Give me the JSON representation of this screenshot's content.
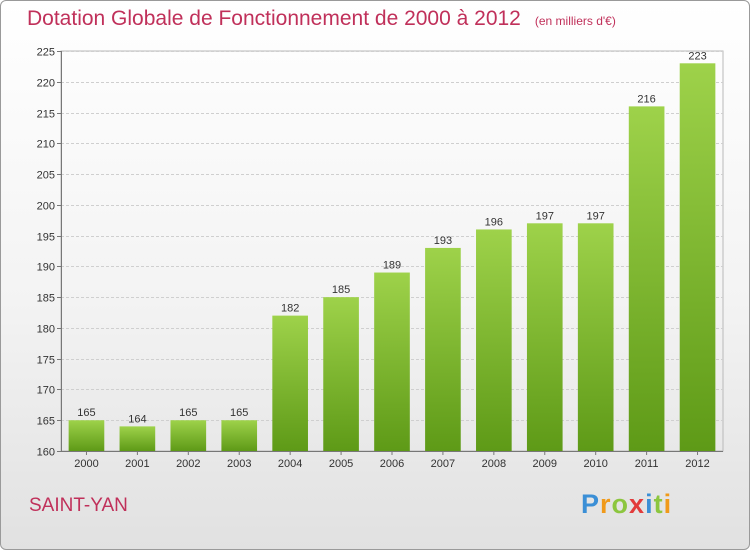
{
  "header": {
    "title": "Dotation Globale de Fonctionnement de 2000 à 2012",
    "subtitle": "(en milliers d'€)"
  },
  "footer": {
    "place": "SAINT-YAN",
    "brand_letters": [
      "P",
      "r",
      "o",
      "x",
      "i",
      "t",
      "i"
    ],
    "brand_colors": [
      "#3b8fd6",
      "#f09a1a",
      "#8cc63f",
      "#e23b3b",
      "#3b8fd6",
      "#8cc63f",
      "#f09a1a"
    ]
  },
  "colors": {
    "bar_light": "#9ed24a",
    "bar_dark": "#5e9a17",
    "title": "#c0305a"
  },
  "chart_data": {
    "type": "bar",
    "categories": [
      "2000",
      "2001",
      "2002",
      "2003",
      "2004",
      "2005",
      "2006",
      "2007",
      "2008",
      "2009",
      "2010",
      "2011",
      "2012"
    ],
    "values": [
      165,
      164,
      165,
      165,
      182,
      185,
      189,
      193,
      196,
      197,
      197,
      216,
      223
    ],
    "ylim": [
      160,
      225
    ],
    "yticks": [
      160,
      165,
      170,
      175,
      180,
      185,
      190,
      195,
      200,
      205,
      210,
      215,
      220,
      225
    ],
    "grid": true
  }
}
